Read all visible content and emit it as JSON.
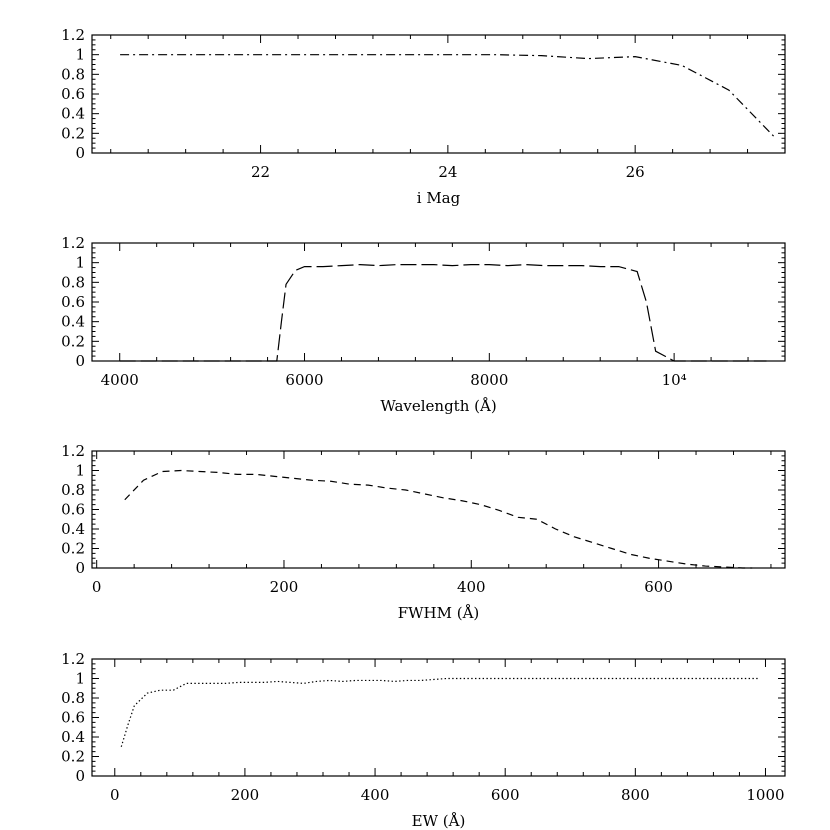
{
  "chart_data": [
    {
      "type": "line",
      "xlabel": "i Mag",
      "ylabel": "",
      "xlim": [
        20.2,
        27.6
      ],
      "ylim": [
        0,
        1.2
      ],
      "x_ticks": [
        {
          "value": 22,
          "label": "22"
        },
        {
          "value": 24,
          "label": "24"
        },
        {
          "value": 26,
          "label": "26"
        }
      ],
      "y_ticks": [
        {
          "value": 0,
          "label": "0"
        },
        {
          "value": 0.2,
          "label": "0.2"
        },
        {
          "value": 0.4,
          "label": "0.4"
        },
        {
          "value": 0.6,
          "label": "0.6"
        },
        {
          "value": 0.8,
          "label": "0.8"
        },
        {
          "value": 1.0,
          "label": "1"
        },
        {
          "value": 1.2,
          "label": "1.2"
        }
      ],
      "line_style": "dash-dot",
      "series": [
        {
          "x": [
            20.5,
            21.0,
            21.5,
            22.0,
            22.5,
            23.0,
            23.5,
            24.0,
            24.5,
            25.0,
            25.5,
            26.0,
            26.5,
            27.0,
            27.5
          ],
          "y": [
            1.0,
            1.0,
            1.0,
            1.0,
            1.0,
            1.0,
            1.0,
            1.0,
            1.0,
            0.99,
            0.96,
            0.98,
            0.89,
            0.64,
            0.15
          ]
        }
      ]
    },
    {
      "type": "line",
      "xlabel": "Wavelength (Å)",
      "ylabel": "",
      "xlim": [
        3700,
        11200
      ],
      "ylim": [
        0,
        1.2
      ],
      "x_ticks": [
        {
          "value": 4000,
          "label": "4000"
        },
        {
          "value": 6000,
          "label": "6000"
        },
        {
          "value": 8000,
          "label": "8000"
        },
        {
          "value": 10000,
          "label": "10⁴"
        }
      ],
      "y_ticks": [
        {
          "value": 0,
          "label": "0"
        },
        {
          "value": 0.2,
          "label": "0.2"
        },
        {
          "value": 0.4,
          "label": "0.4"
        },
        {
          "value": 0.6,
          "label": "0.6"
        },
        {
          "value": 0.8,
          "label": "0.8"
        },
        {
          "value": 1.0,
          "label": "1"
        },
        {
          "value": 1.2,
          "label": "1.2"
        }
      ],
      "line_style": "long-dash",
      "series": [
        {
          "x": [
            4000,
            4500,
            5000,
            5500,
            5700,
            5750,
            5800,
            5900,
            6000,
            6200,
            6400,
            6600,
            6800,
            7000,
            7200,
            7400,
            7600,
            7800,
            8000,
            8200,
            8400,
            8600,
            8800,
            9000,
            9200,
            9400,
            9600,
            9700,
            9800,
            10000,
            10500,
            11000
          ],
          "y": [
            0,
            0,
            0,
            0,
            0,
            0.4,
            0.78,
            0.92,
            0.96,
            0.96,
            0.97,
            0.98,
            0.97,
            0.98,
            0.98,
            0.98,
            0.97,
            0.98,
            0.98,
            0.97,
            0.98,
            0.97,
            0.97,
            0.97,
            0.96,
            0.96,
            0.91,
            0.6,
            0.1,
            0,
            0,
            0
          ]
        }
      ]
    },
    {
      "type": "line",
      "xlabel": "FWHM (Å)",
      "ylabel": "",
      "xlim": [
        -5,
        735
      ],
      "ylim": [
        0,
        1.2
      ],
      "x_ticks": [
        {
          "value": 0,
          "label": "0"
        },
        {
          "value": 200,
          "label": "200"
        },
        {
          "value": 400,
          "label": "400"
        },
        {
          "value": 600,
          "label": "600"
        }
      ],
      "y_ticks": [
        {
          "value": 0,
          "label": "0"
        },
        {
          "value": 0.2,
          "label": "0.2"
        },
        {
          "value": 0.4,
          "label": "0.4"
        },
        {
          "value": 0.6,
          "label": "0.6"
        },
        {
          "value": 0.8,
          "label": "0.8"
        },
        {
          "value": 1.0,
          "label": "1"
        },
        {
          "value": 1.2,
          "label": "1.2"
        }
      ],
      "line_style": "dashed",
      "series": [
        {
          "x": [
            30,
            50,
            70,
            90,
            110,
            130,
            150,
            170,
            190,
            210,
            230,
            250,
            270,
            290,
            310,
            330,
            350,
            370,
            390,
            410,
            430,
            450,
            470,
            490,
            510,
            530,
            550,
            570,
            590,
            610,
            630,
            650,
            670,
            690,
            700
          ],
          "y": [
            0.7,
            0.9,
            0.99,
            1.0,
            0.99,
            0.98,
            0.96,
            0.96,
            0.94,
            0.92,
            0.9,
            0.89,
            0.86,
            0.85,
            0.82,
            0.8,
            0.76,
            0.72,
            0.69,
            0.65,
            0.59,
            0.52,
            0.5,
            0.4,
            0.32,
            0.26,
            0.2,
            0.14,
            0.1,
            0.07,
            0.04,
            0.02,
            0.01,
            0.0,
            0.0
          ]
        }
      ]
    },
    {
      "type": "line",
      "xlabel": "EW (Å)",
      "ylabel": "",
      "xlim": [
        -35,
        1030
      ],
      "ylim": [
        0,
        1.2
      ],
      "x_ticks": [
        {
          "value": 0,
          "label": "0"
        },
        {
          "value": 200,
          "label": "200"
        },
        {
          "value": 400,
          "label": "400"
        },
        {
          "value": 600,
          "label": "600"
        },
        {
          "value": 800,
          "label": "800"
        },
        {
          "value": 1000,
          "label": "1000"
        }
      ],
      "y_ticks": [
        {
          "value": 0,
          "label": "0"
        },
        {
          "value": 0.2,
          "label": "0.2"
        },
        {
          "value": 0.4,
          "label": "0.4"
        },
        {
          "value": 0.6,
          "label": "0.6"
        },
        {
          "value": 0.8,
          "label": "0.8"
        },
        {
          "value": 1.0,
          "label": "1"
        },
        {
          "value": 1.2,
          "label": "1.2"
        }
      ],
      "line_style": "dotted",
      "series": [
        {
          "x": [
            10,
            20,
            30,
            50,
            70,
            90,
            110,
            130,
            150,
            170,
            190,
            210,
            230,
            250,
            270,
            290,
            310,
            330,
            350,
            370,
            390,
            410,
            430,
            450,
            470,
            490,
            510,
            550,
            600,
            650,
            700,
            750,
            800,
            850,
            900,
            950,
            990
          ],
          "y": [
            0.3,
            0.52,
            0.72,
            0.85,
            0.88,
            0.88,
            0.95,
            0.95,
            0.95,
            0.95,
            0.96,
            0.96,
            0.96,
            0.97,
            0.96,
            0.95,
            0.97,
            0.98,
            0.97,
            0.98,
            0.98,
            0.98,
            0.97,
            0.98,
            0.98,
            0.99,
            1.0,
            1.0,
            1.0,
            1.0,
            1.0,
            1.0,
            1.0,
            1.0,
            1.0,
            1.0,
            1.0
          ]
        }
      ]
    }
  ]
}
